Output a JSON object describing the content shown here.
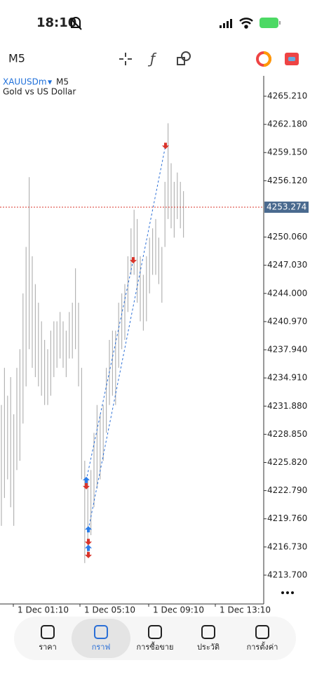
{
  "status_bar": {
    "time": "18:10"
  },
  "toolbar": {
    "timeframe": "M5"
  },
  "chart_data": {
    "type": "ohlc",
    "symbol": "XAUUSDm",
    "timeframe": "M5",
    "description": "Gold vs US Dollar",
    "highs": [
      4232,
      4236,
      4233,
      4235,
      4231,
      4236,
      4238,
      4244,
      4249,
      4256.5,
      4248,
      4245,
      4243,
      4241,
      4239,
      4238,
      4240,
      4241,
      4241,
      4242,
      4241,
      4240,
      4242,
      4243,
      4246.7,
      4243,
      4236,
      4226,
      4224,
      4225,
      4229,
      4232,
      4231,
      4232,
      4236,
      4239,
      4240,
      4240,
      4243,
      4244,
      4245,
      4248,
      4251,
      4253,
      4252,
      4248,
      4246,
      4248,
      4250,
      4251,
      4252,
      4250,
      4249,
      4256,
      4262.3,
      4258,
      4256,
      4257,
      4256,
      4255
    ],
    "lows": [
      4219,
      4222,
      4224,
      4221,
      4219,
      4225,
      4226,
      4230,
      4234,
      4238,
      4236,
      4235,
      4234,
      4233,
      4232,
      4232,
      4233,
      4235,
      4236,
      4237,
      4236,
      4235,
      4237,
      4237,
      4238,
      4234,
      4224,
      4215,
      4216,
      4218,
      4221,
      4223,
      4224,
      4226,
      4229,
      4232,
      4233,
      4232,
      4236,
      4238,
      4239,
      4242,
      4246,
      4246,
      4243,
      4241,
      4240,
      4241,
      4244,
      4246,
      4246,
      4245,
      4243,
      4249,
      4252,
      4251,
      4250,
      4252,
      4251,
      4250
    ],
    "color": "#b4b4b4",
    "buy_markers": [
      4223.9,
      4218.6,
      4216.6
    ],
    "sell_markers": [
      4223.3,
      4217.3,
      4215.9,
      4247.6,
      4259.9
    ],
    "current_price": 4253.274,
    "ylim": [
      4210.6,
      4267.4
    ],
    "yticks": [
      {
        "value": 4265.21,
        "label": "4265.210"
      },
      {
        "value": 4262.18,
        "label": "4262.180"
      },
      {
        "value": 4259.15,
        "label": "4259.150"
      },
      {
        "value": 4256.12,
        "label": "4256.120"
      },
      {
        "value": 4250.06,
        "label": "4250.060"
      },
      {
        "value": 4247.03,
        "label": "4247.030"
      },
      {
        "value": 4244,
        "label": "4244.000"
      },
      {
        "value": 4240.97,
        "label": "4240.970"
      },
      {
        "value": 4237.94,
        "label": "4237.940"
      },
      {
        "value": 4234.91,
        "label": "4234.910"
      },
      {
        "value": 4231.88,
        "label": "4231.880"
      },
      {
        "value": 4228.85,
        "label": "4228.850"
      },
      {
        "value": 4225.82,
        "label": "4225.820"
      },
      {
        "value": 4222.79,
        "label": "4222.790"
      },
      {
        "value": 4219.76,
        "label": "4219.760"
      },
      {
        "value": 4216.73,
        "label": "4216.730"
      },
      {
        "value": 4213.7,
        "label": "4213.700"
      }
    ],
    "x_labels": [
      "1 Dec 01:10",
      "1 Dec 05:10",
      "1 Dec 09:10",
      "1 Dec 13:10"
    ]
  },
  "nav": {
    "items": [
      "ราคา",
      "กราฟ",
      "การซื้อขาย",
      "ประวัติ",
      "การตั้งค่า"
    ]
  }
}
